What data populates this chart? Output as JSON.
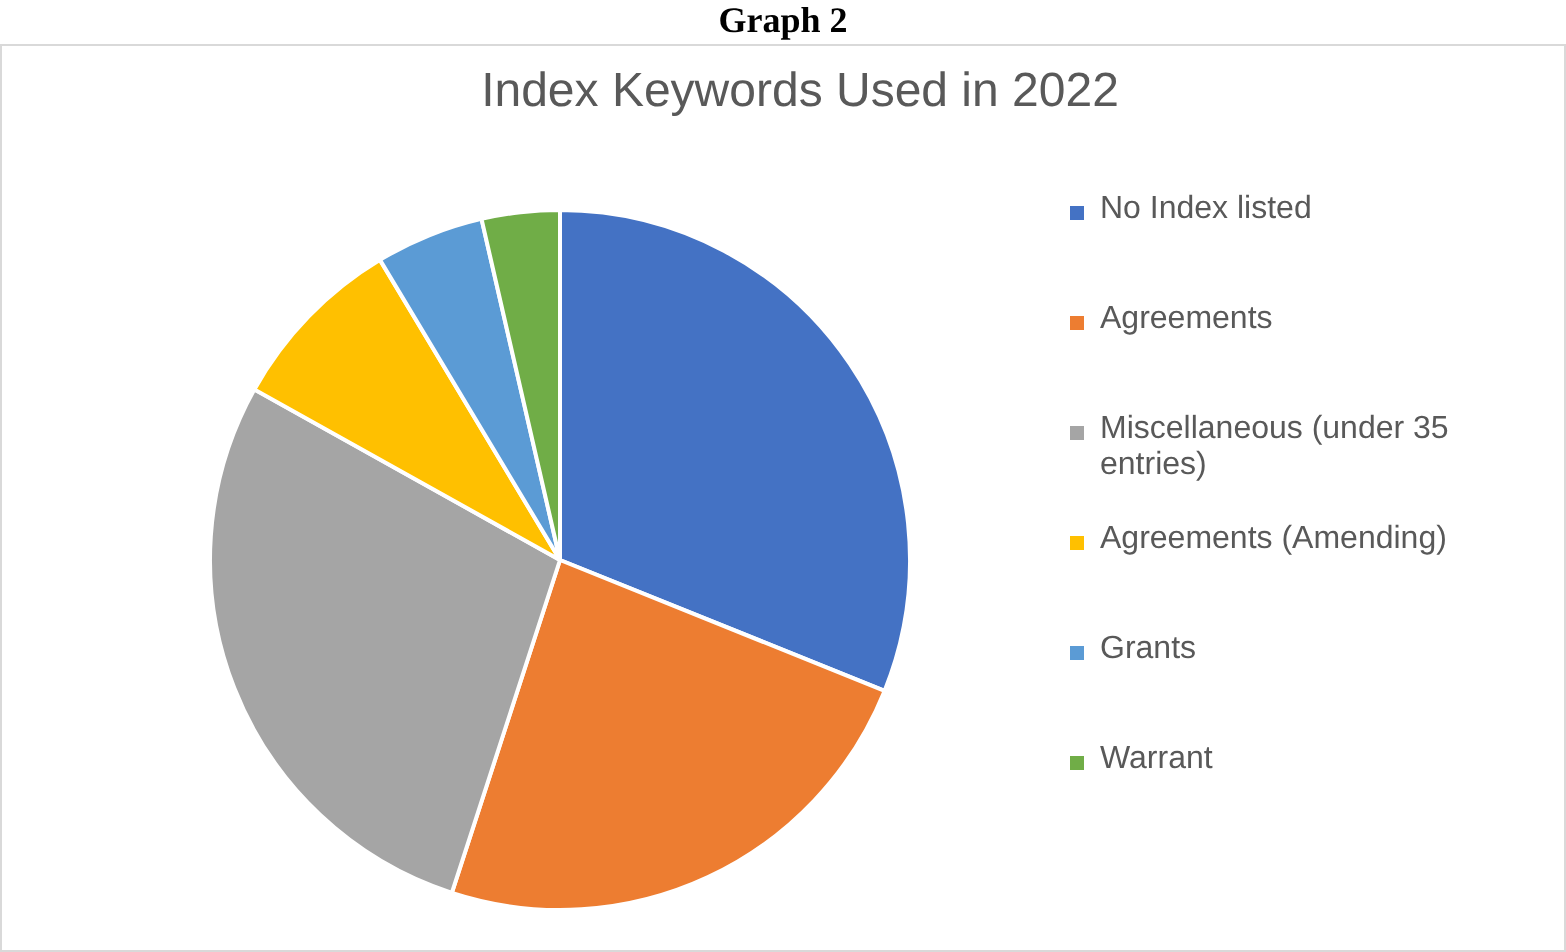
{
  "chart_data": {
    "type": "pie",
    "title": "Index Keywords Used in 2022",
    "annotations": [
      "Graph 2"
    ],
    "categories": [
      "No Index listed",
      "Agreements",
      "Miscellaneous  (under 35 entries)",
      "Agreements (Amending)",
      "Grants",
      "Warrant"
    ],
    "values": [
      31.1,
      23.9,
      28.1,
      8.3,
      5.0,
      3.6
    ],
    "colors": [
      "#4472c4",
      "#ed7d31",
      "#a5a5a5",
      "#ffc000",
      "#5b9bd5",
      "#70ad47"
    ],
    "legend": "right"
  }
}
